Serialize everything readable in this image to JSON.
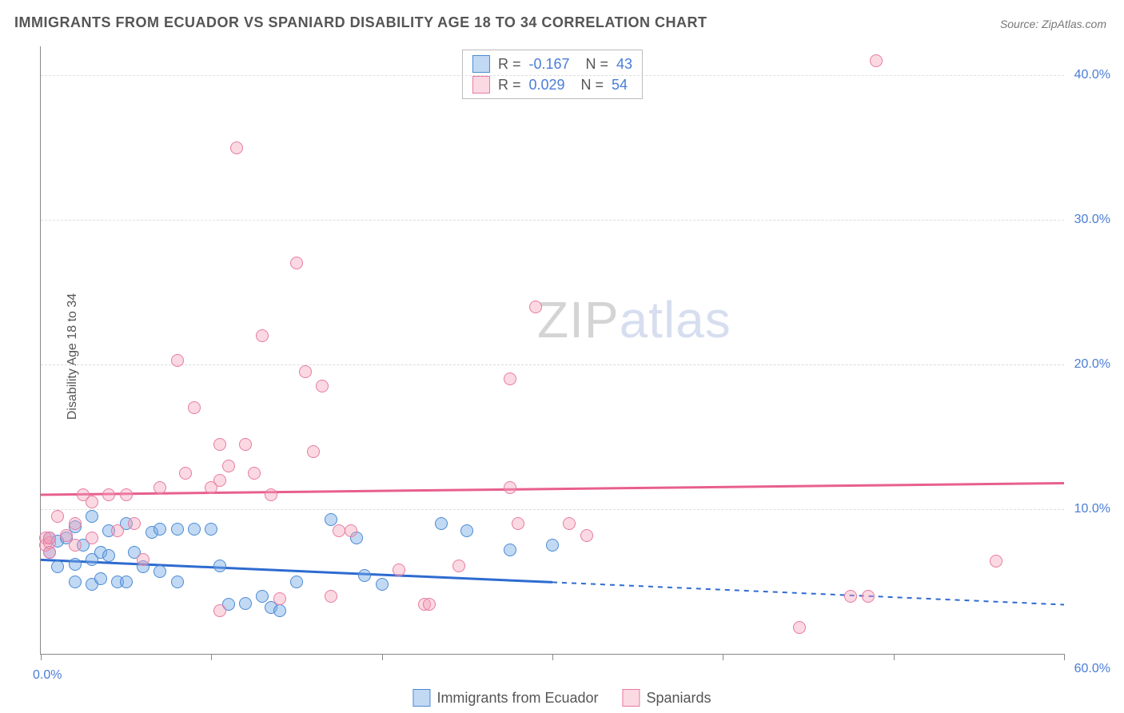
{
  "title": "IMMIGRANTS FROM ECUADOR VS SPANIARD DISABILITY AGE 18 TO 34 CORRELATION CHART",
  "source": "Source: ZipAtlas.com",
  "ylabel": "Disability Age 18 to 34",
  "watermark_bold": "ZIP",
  "watermark_thin": "atlas",
  "chart": {
    "type": "scatter",
    "xlim": [
      0,
      60
    ],
    "ylim": [
      0,
      42
    ],
    "xtick_positions": [
      0,
      10,
      20,
      30,
      40,
      50,
      60
    ],
    "xtick_labels_shown": {
      "min": "0.0%",
      "max": "60.0%"
    },
    "ytick_positions": [
      10,
      20,
      30,
      40
    ],
    "ytick_labels": [
      "10.0%",
      "20.0%",
      "30.0%",
      "40.0%"
    ],
    "grid_color": "#dddddd",
    "axis_color": "#888888",
    "background_color": "#ffffff",
    "tick_label_color": "#4a7dd6",
    "point_radius": 8,
    "series": [
      {
        "name": "Immigrants from Ecuador",
        "fill": "rgba(120,170,230,0.45)",
        "stroke": "#4a8ad4",
        "trend_color": "#2e6bd0",
        "trend_y_at_xmin": 6.5,
        "trend_y_at_xmax": 3.4,
        "trend_solid_until_x": 30,
        "R": "-0.167",
        "N": "43",
        "points": [
          [
            0.5,
            8.0
          ],
          [
            0.5,
            7.0
          ],
          [
            1.0,
            7.8
          ],
          [
            1.0,
            6.0
          ],
          [
            1.5,
            8.0
          ],
          [
            2.0,
            6.2
          ],
          [
            2.0,
            8.8
          ],
          [
            2.0,
            5.0
          ],
          [
            2.5,
            7.5
          ],
          [
            3.0,
            9.5
          ],
          [
            3.0,
            6.5
          ],
          [
            3.0,
            4.8
          ],
          [
            3.5,
            7.0
          ],
          [
            3.5,
            5.2
          ],
          [
            4.0,
            8.5
          ],
          [
            4.0,
            6.8
          ],
          [
            4.5,
            5.0
          ],
          [
            5.0,
            9.0
          ],
          [
            5.0,
            5.0
          ],
          [
            5.5,
            7.0
          ],
          [
            6.0,
            6.0
          ],
          [
            6.5,
            8.4
          ],
          [
            7.0,
            5.7
          ],
          [
            7.0,
            8.6
          ],
          [
            8.0,
            8.6
          ],
          [
            8.0,
            5.0
          ],
          [
            9.0,
            8.6
          ],
          [
            10.0,
            8.6
          ],
          [
            10.5,
            6.1
          ],
          [
            11.0,
            3.4
          ],
          [
            12.0,
            3.5
          ],
          [
            13.0,
            4.0
          ],
          [
            13.5,
            3.2
          ],
          [
            14.0,
            3.0
          ],
          [
            15.0,
            5.0
          ],
          [
            17.0,
            9.3
          ],
          [
            18.5,
            8.0
          ],
          [
            19.0,
            5.4
          ],
          [
            20.0,
            4.8
          ],
          [
            23.5,
            9.0
          ],
          [
            25.0,
            8.5
          ],
          [
            27.5,
            7.2
          ],
          [
            30.0,
            7.5
          ]
        ]
      },
      {
        "name": "Spaniards",
        "fill": "rgba(245,160,185,0.40)",
        "stroke": "#e77ba1",
        "trend_color": "#e85f8f",
        "trend_y_at_xmin": 11.0,
        "trend_y_at_xmax": 11.8,
        "trend_solid_until_x": 60,
        "R": "0.029",
        "N": "54",
        "points": [
          [
            0.3,
            8.0
          ],
          [
            0.3,
            7.5
          ],
          [
            0.5,
            7.7
          ],
          [
            0.5,
            8.0
          ],
          [
            0.5,
            7.0
          ],
          [
            1.0,
            9.5
          ],
          [
            1.5,
            8.2
          ],
          [
            2.0,
            7.5
          ],
          [
            2.0,
            9.0
          ],
          [
            2.5,
            11.0
          ],
          [
            3.0,
            10.5
          ],
          [
            3.0,
            8.0
          ],
          [
            4.0,
            11.0
          ],
          [
            4.5,
            8.5
          ],
          [
            5.0,
            11.0
          ],
          [
            5.5,
            9.0
          ],
          [
            6.0,
            6.5
          ],
          [
            7.0,
            11.5
          ],
          [
            8.0,
            20.3
          ],
          [
            8.5,
            12.5
          ],
          [
            9.0,
            17.0
          ],
          [
            10.0,
            11.5
          ],
          [
            10.5,
            14.5
          ],
          [
            10.5,
            12.0
          ],
          [
            10.5,
            3.0
          ],
          [
            11.5,
            35.0
          ],
          [
            11.0,
            13.0
          ],
          [
            12.0,
            14.5
          ],
          [
            12.5,
            12.5
          ],
          [
            13.0,
            22.0
          ],
          [
            13.5,
            11.0
          ],
          [
            14.0,
            3.8
          ],
          [
            15.5,
            19.5
          ],
          [
            15.0,
            27.0
          ],
          [
            16.0,
            14.0
          ],
          [
            16.5,
            18.5
          ],
          [
            17.0,
            4.0
          ],
          [
            17.5,
            8.5
          ],
          [
            18.2,
            8.5
          ],
          [
            21.0,
            5.8
          ],
          [
            22.5,
            3.4
          ],
          [
            22.8,
            3.4
          ],
          [
            24.5,
            6.1
          ],
          [
            27.5,
            19.0
          ],
          [
            27.5,
            11.5
          ],
          [
            28.0,
            9.0
          ],
          [
            29.0,
            24.0
          ],
          [
            31.0,
            9.0
          ],
          [
            32.0,
            8.2
          ],
          [
            44.5,
            1.8
          ],
          [
            47.5,
            4.0
          ],
          [
            48.5,
            4.0
          ],
          [
            49.0,
            41.0
          ],
          [
            56.0,
            6.4
          ]
        ]
      }
    ]
  },
  "legend": {
    "items": [
      {
        "label": "Immigrants from Ecuador",
        "fill": "rgba(120,170,230,0.45)",
        "stroke": "#4a8ad4"
      },
      {
        "label": "Spaniards",
        "fill": "rgba(245,160,185,0.40)",
        "stroke": "#e77ba1"
      }
    ]
  }
}
